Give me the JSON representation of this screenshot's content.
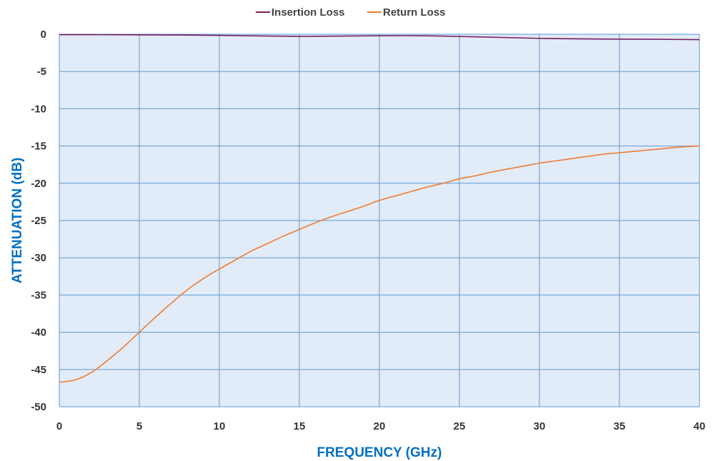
{
  "chart_data": {
    "type": "line",
    "title": "",
    "xlabel": "FREQUENCY (GHz)",
    "ylabel": "ATTENUATION (dB)",
    "xlim": [
      0,
      40
    ],
    "ylim": [
      -50,
      0
    ],
    "x_ticks": [
      0,
      5,
      10,
      15,
      20,
      25,
      30,
      35,
      40
    ],
    "y_ticks": [
      0,
      -5,
      -10,
      -15,
      -20,
      -25,
      -30,
      -35,
      -40,
      -45,
      -50
    ],
    "x_tick_labels": [
      "0",
      "5",
      "10",
      "15",
      "20",
      "25",
      "30",
      "35",
      "40"
    ],
    "y_tick_labels": [
      "0",
      "-5",
      "-10",
      "-15",
      "-20",
      "-25",
      "-30",
      "-35",
      "-40",
      "-45",
      "-50"
    ],
    "grid": true,
    "legend_position": "top-center",
    "colors": {
      "plot_background": "#E2EBF8",
      "grid": "#5B9BD5",
      "axis_title": "#0070C0"
    },
    "series": [
      {
        "name": "Insertion Loss",
        "color": "#7A1E5C",
        "x": [
          0,
          2.5,
          5,
          7.5,
          10,
          12.5,
          15,
          17.5,
          20,
          22.5,
          25,
          27.5,
          30,
          32.5,
          35,
          37.5,
          40
        ],
        "y": [
          -0.05,
          -0.06,
          -0.08,
          -0.1,
          -0.15,
          -0.22,
          -0.28,
          -0.25,
          -0.2,
          -0.2,
          -0.3,
          -0.42,
          -0.55,
          -0.62,
          -0.65,
          -0.68,
          -0.72
        ]
      },
      {
        "name": "Return Loss",
        "color": "#ED7D31",
        "x": [
          0,
          1,
          2,
          3,
          4,
          5,
          6,
          7,
          8,
          9,
          10,
          11,
          12,
          13,
          14,
          15,
          16,
          17,
          18,
          19,
          20,
          21,
          22,
          23,
          24,
          25,
          26,
          27,
          28,
          29,
          30,
          31,
          32,
          33,
          34,
          35,
          36,
          37,
          38,
          39,
          40
        ],
        "y": [
          -46.7,
          -46.4,
          -45.4,
          -43.8,
          -42.0,
          -40.0,
          -38.0,
          -36.1,
          -34.3,
          -32.8,
          -31.5,
          -30.3,
          -29.1,
          -28.1,
          -27.1,
          -26.2,
          -25.3,
          -24.5,
          -23.8,
          -23.1,
          -22.3,
          -21.7,
          -21.1,
          -20.5,
          -20.0,
          -19.4,
          -19.0,
          -18.5,
          -18.1,
          -17.7,
          -17.3,
          -17.0,
          -16.7,
          -16.4,
          -16.1,
          -15.9,
          -15.7,
          -15.5,
          -15.3,
          -15.1,
          -15.0
        ]
      }
    ]
  }
}
